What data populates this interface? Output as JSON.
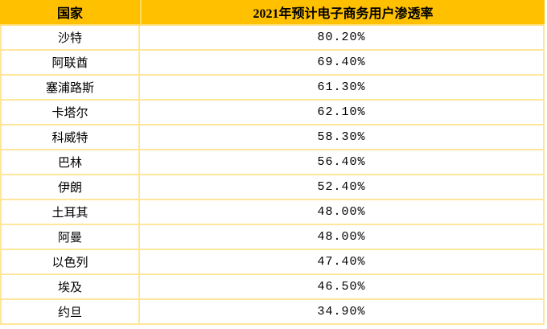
{
  "table": {
    "headers": [
      "国家",
      "2021年预计电子商务用户渗透率"
    ],
    "rows": [
      {
        "country": "沙特",
        "rate": "80.20%"
      },
      {
        "country": "阿联酋",
        "rate": "69.40%"
      },
      {
        "country": "塞浦路斯",
        "rate": "61.30%"
      },
      {
        "country": "卡塔尔",
        "rate": "62.10%"
      },
      {
        "country": "科威特",
        "rate": "58.30%"
      },
      {
        "country": "巴林",
        "rate": "56.40%"
      },
      {
        "country": "伊朗",
        "rate": "52.40%"
      },
      {
        "country": "土耳其",
        "rate": "48.00%"
      },
      {
        "country": "阿曼",
        "rate": "48.00%"
      },
      {
        "country": "以色列",
        "rate": "47.40%"
      },
      {
        "country": "埃及",
        "rate": "46.50%"
      },
      {
        "country": "约旦",
        "rate": "34.90%"
      }
    ]
  },
  "colors": {
    "header_bg": "#FFC000",
    "header_divider": "#FFD95C",
    "grid_border": "#FFE699",
    "row_bg": "#FFFFFF",
    "text": "#000000"
  },
  "chart_data": {
    "type": "table",
    "title": "2021年预计电子商务用户渗透率",
    "columns": [
      "国家",
      "2021年预计电子商务用户渗透率"
    ],
    "categories": [
      "沙特",
      "阿联酋",
      "塞浦路斯",
      "卡塔尔",
      "科威特",
      "巴林",
      "伊朗",
      "土耳其",
      "阿曼",
      "以色列",
      "埃及",
      "约旦"
    ],
    "values": [
      80.2,
      69.4,
      61.3,
      62.1,
      58.3,
      56.4,
      52.4,
      48.0,
      48.0,
      47.4,
      46.5,
      34.9
    ],
    "unit": "%",
    "layout": "header row gold, value column center-aligned, grid on"
  }
}
